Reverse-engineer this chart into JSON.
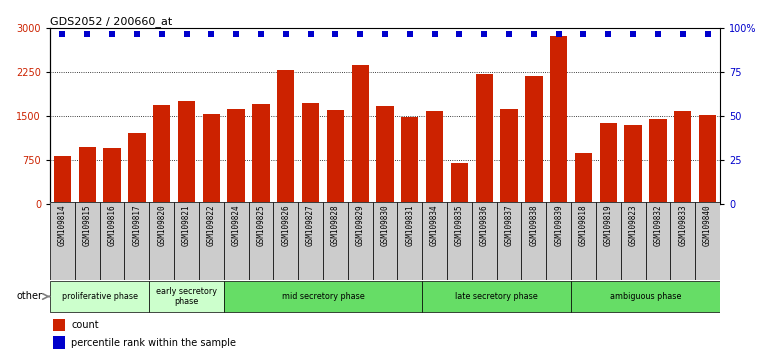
{
  "title": "GDS2052 / 200660_at",
  "samples": [
    "GSM109814",
    "GSM109815",
    "GSM109816",
    "GSM109817",
    "GSM109820",
    "GSM109821",
    "GSM109822",
    "GSM109824",
    "GSM109825",
    "GSM109826",
    "GSM109827",
    "GSM109828",
    "GSM109829",
    "GSM109830",
    "GSM109831",
    "GSM109834",
    "GSM109835",
    "GSM109836",
    "GSM109837",
    "GSM109838",
    "GSM109839",
    "GSM109818",
    "GSM109819",
    "GSM109823",
    "GSM109832",
    "GSM109833",
    "GSM109840"
  ],
  "counts": [
    820,
    960,
    950,
    1200,
    1680,
    1750,
    1530,
    1620,
    1700,
    2280,
    1720,
    1600,
    2380,
    1670,
    1490,
    1590,
    700,
    2220,
    1620,
    2190,
    2870,
    870,
    1380,
    1340,
    1450,
    1580,
    1510
  ],
  "percentiles": [
    97,
    97,
    97,
    97,
    97,
    97,
    97,
    97,
    97,
    97,
    97,
    97,
    97,
    97,
    97,
    97,
    97,
    97,
    97,
    97,
    97,
    97,
    97,
    97,
    97,
    97,
    97
  ],
  "phases": [
    {
      "label": "proliferative phase",
      "start": 0,
      "end": 4,
      "color": "#ccffcc"
    },
    {
      "label": "early secretory\nphase",
      "start": 4,
      "end": 7,
      "color": "#ccffcc"
    },
    {
      "label": "mid secretory phase",
      "start": 7,
      "end": 15,
      "color": "#66dd66"
    },
    {
      "label": "late secretory phase",
      "start": 15,
      "end": 21,
      "color": "#66dd66"
    },
    {
      "label": "ambiguous phase",
      "start": 21,
      "end": 27,
      "color": "#66dd66"
    }
  ],
  "bar_color": "#cc2200",
  "dot_color": "#0000cc",
  "ylim_left": [
    0,
    3000
  ],
  "ylim_right": [
    0,
    100
  ],
  "yticks_left": [
    0,
    750,
    1500,
    2250,
    3000
  ],
  "ytick_labels_left": [
    "0",
    "750",
    "1500",
    "2250",
    "3000"
  ],
  "yticks_right": [
    0,
    25,
    50,
    75,
    100
  ],
  "ytick_labels_right": [
    "0",
    "25",
    "50",
    "75",
    "100%"
  ],
  "background_color": "#ffffff",
  "bar_width": 0.7,
  "other_label": "other",
  "legend_count_label": "count",
  "legend_pct_label": "percentile rank within the sample"
}
